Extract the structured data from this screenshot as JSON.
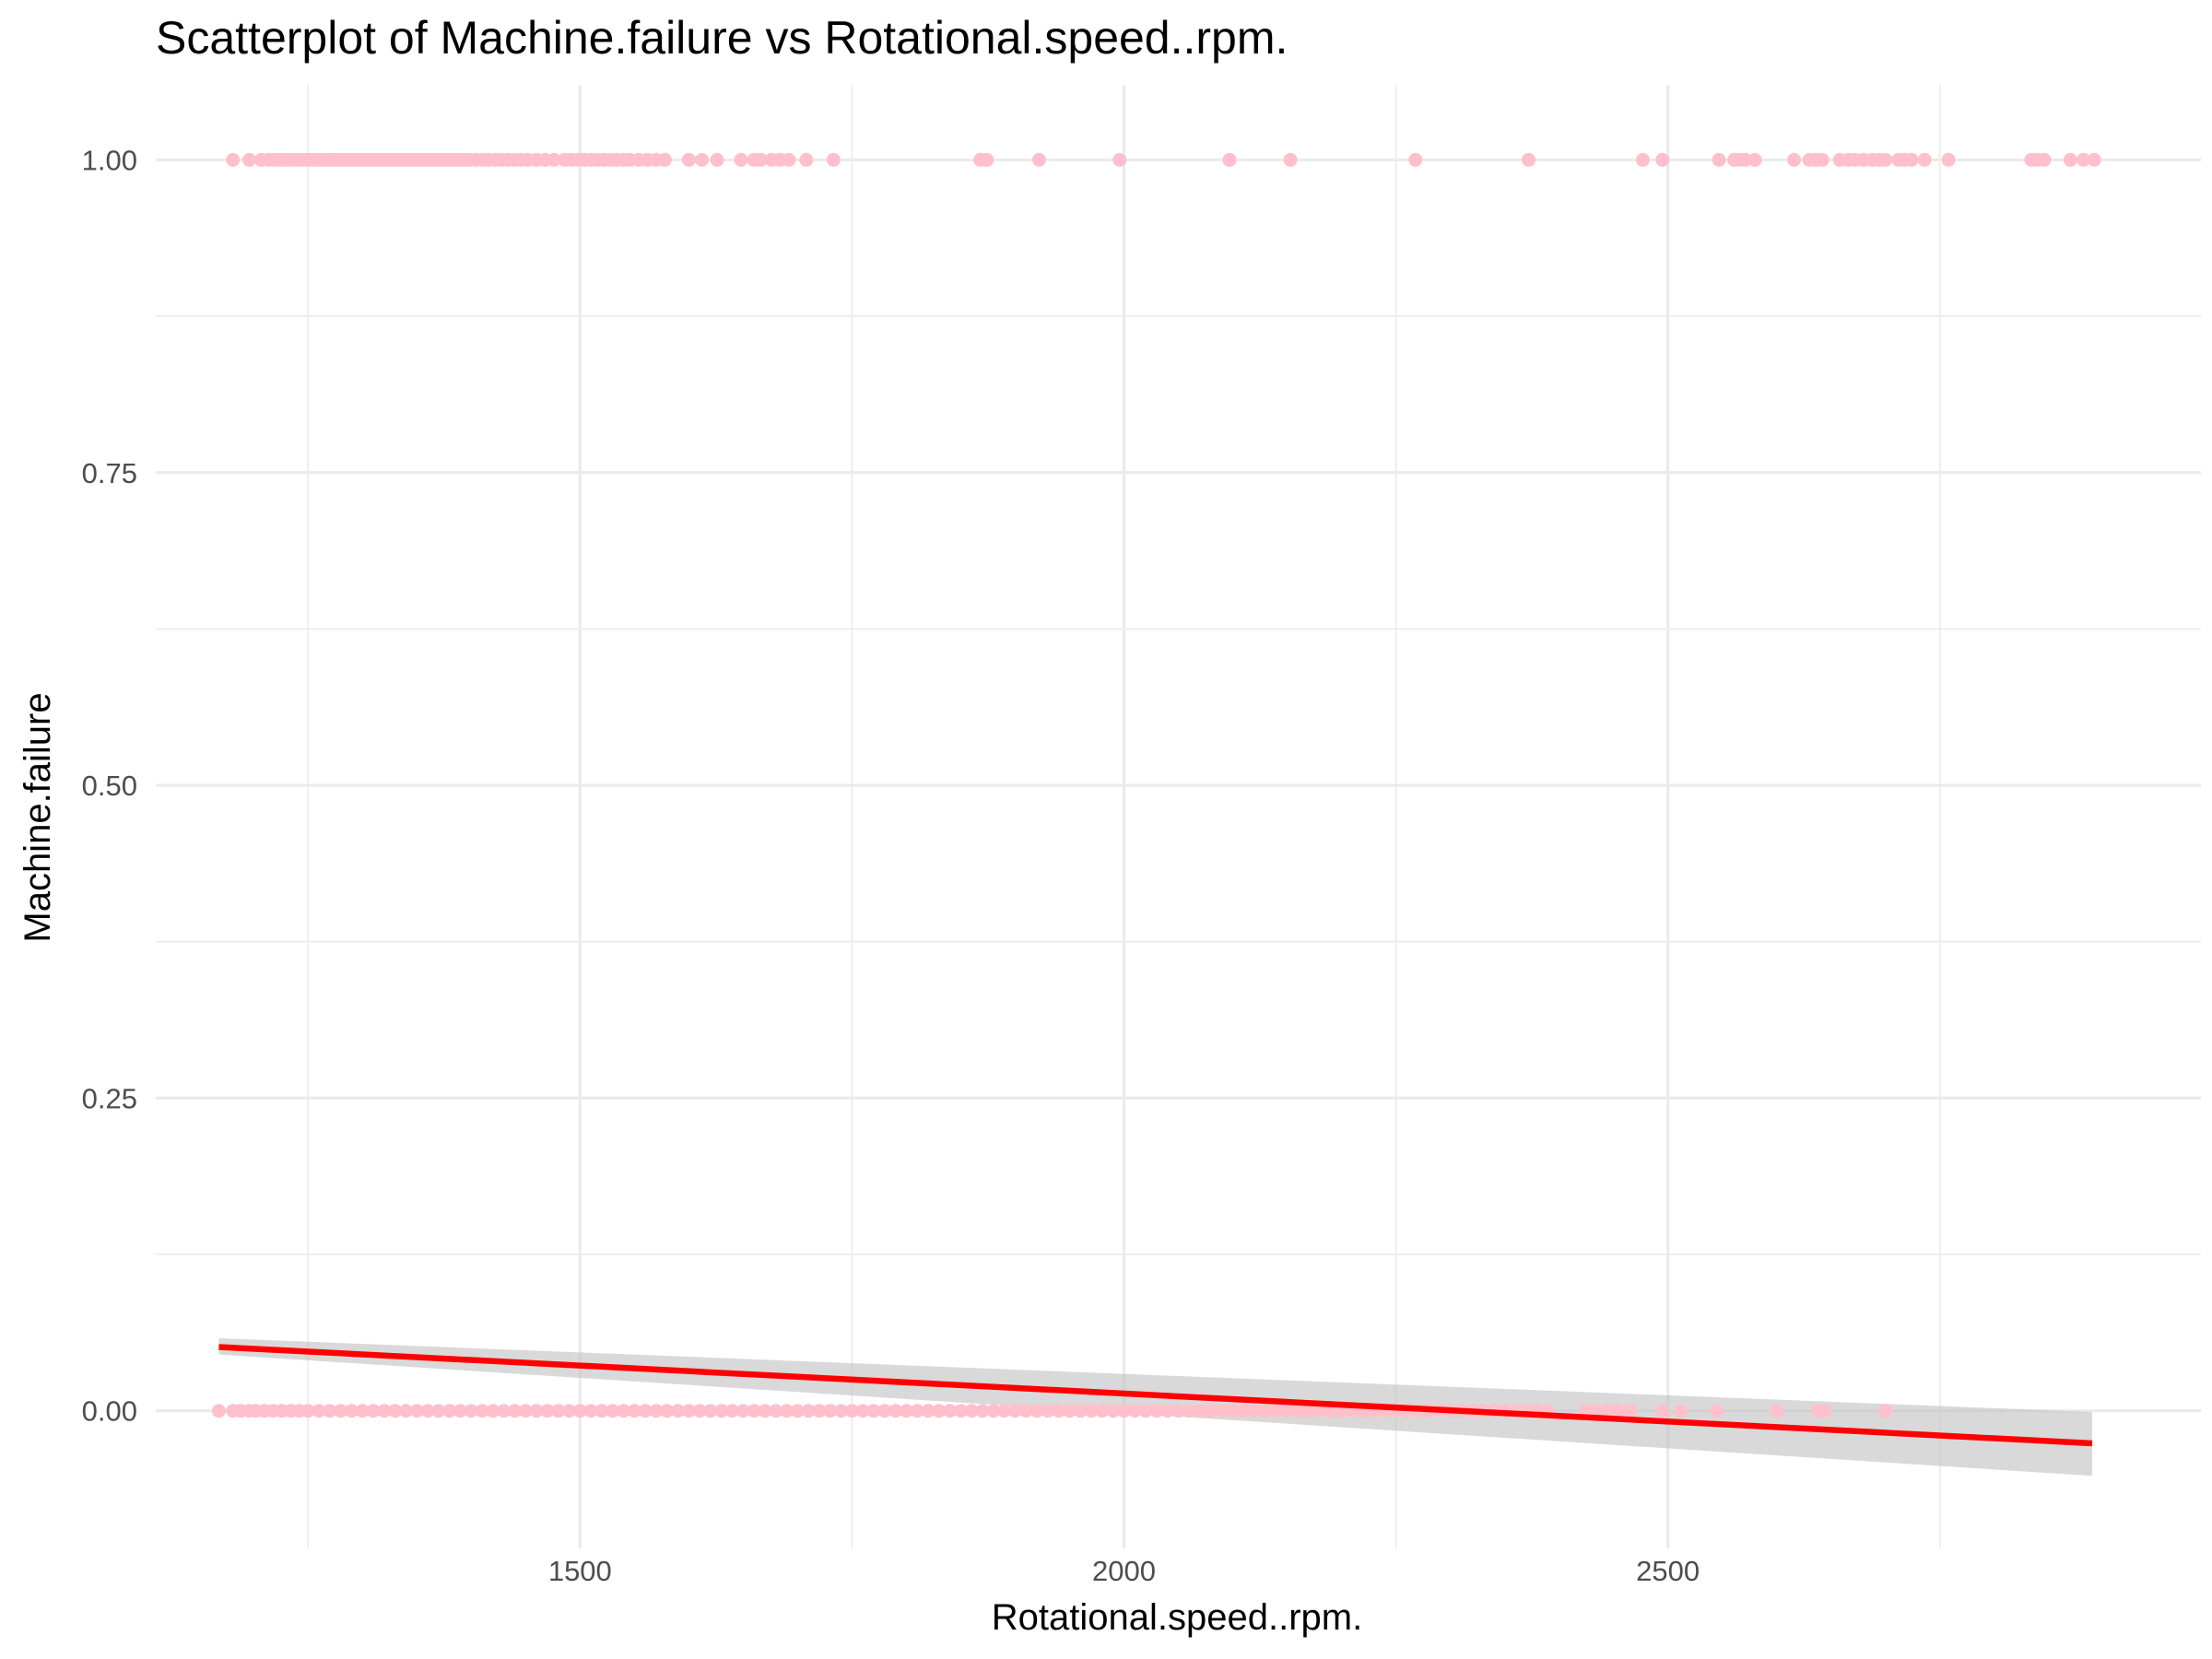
{
  "chart_data": {
    "type": "scatter",
    "title": "Scatterplot of Machine.failure vs Rotational.speed..rpm.",
    "xlabel": "Rotational.speed..rpm.",
    "ylabel": "Machine.failure",
    "xlim": [
      1110,
      2990
    ],
    "ylim": [
      -0.11,
      1.06
    ],
    "x_ticks": [
      1500,
      2000,
      2500
    ],
    "x_tick_labels": [
      "1500",
      "2000",
      "2500"
    ],
    "y_ticks": [
      0,
      0.25,
      0.5,
      0.75,
      1
    ],
    "y_tick_labels": [
      "0.00",
      "0.25",
      "0.50",
      "0.75",
      "1.00"
    ],
    "grid": true,
    "colors": {
      "points": "#FFC0CB",
      "fit_line": "#FF0000",
      "confidence_band": "#BFBFBF",
      "grid": "#EBEBEB"
    },
    "series": [
      {
        "values_y": 1,
        "x": [
          1181,
          1196,
          1207,
          1214,
          1219,
          1224,
          1228,
          1232,
          1236,
          1242,
          1246,
          1250,
          1254,
          1258,
          1262,
          1266,
          1270,
          1274,
          1278,
          1282,
          1286,
          1290,
          1294,
          1298,
          1302,
          1306,
          1310,
          1314,
          1318,
          1322,
          1326,
          1330,
          1334,
          1338,
          1342,
          1346,
          1350,
          1354,
          1358,
          1362,
          1366,
          1370,
          1374,
          1378,
          1382,
          1386,
          1390,
          1394,
          1398,
          1404,
          1410,
          1416,
          1422,
          1428,
          1434,
          1440,
          1446,
          1452,
          1460,
          1468,
          1476,
          1486,
          1492,
          1498,
          1504,
          1510,
          1516,
          1522,
          1528,
          1534,
          1540,
          1546,
          1554,
          1562,
          1570,
          1578,
          1600,
          1612,
          1626,
          1648,
          1660,
          1666,
          1676,
          1684,
          1692,
          1708,
          1733,
          1868,
          1874,
          1922,
          1996,
          2097,
          2153,
          2268,
          2372,
          2477,
          2495,
          2547,
          2561,
          2566,
          2571,
          2580,
          2616,
          2630,
          2636,
          2642,
          2658,
          2666,
          2672,
          2680,
          2688,
          2694,
          2700,
          2712,
          2718,
          2724,
          2736,
          2758,
          2834,
          2840,
          2846,
          2870,
          2882,
          2892
        ]
      },
      {
        "values_y": 0,
        "x": [
          1168,
          1181,
          1188,
          1196,
          1202,
          1210,
          1218,
          1226,
          1234,
          1242,
          1250,
          1260,
          1270,
          1280,
          1290,
          1300,
          1310,
          1320,
          1330,
          1340,
          1350,
          1360,
          1370,
          1380,
          1390,
          1400,
          1410,
          1420,
          1430,
          1440,
          1450,
          1460,
          1470,
          1480,
          1490,
          1500,
          1510,
          1520,
          1530,
          1540,
          1550,
          1560,
          1570,
          1580,
          1590,
          1600,
          1610,
          1620,
          1630,
          1640,
          1650,
          1660,
          1670,
          1680,
          1690,
          1700,
          1710,
          1720,
          1730,
          1740,
          1750,
          1760,
          1770,
          1780,
          1790,
          1800,
          1810,
          1820,
          1830,
          1840,
          1850,
          1860,
          1870,
          1880,
          1890,
          1900,
          1910,
          1920,
          1930,
          1940,
          1950,
          1960,
          1970,
          1980,
          1990,
          2000,
          2010,
          2020,
          2030,
          2040,
          2050,
          2060,
          2070,
          2080,
          2090,
          2100,
          2110,
          2120,
          2130,
          2140,
          2150,
          2160,
          2170,
          2180,
          2190,
          2200,
          2210,
          2220,
          2230,
          2240,
          2250,
          2260,
          2270,
          2280,
          2290,
          2300,
          2310,
          2320,
          2330,
          2340,
          2350,
          2360,
          2370,
          2380,
          2390,
          2425,
          2435,
          2445,
          2455,
          2465,
          2495,
          2512,
          2545,
          2600,
          2638,
          2644,
          2700
        ]
      }
    ],
    "fit_line": {
      "x": [
        1168,
        2890
      ],
      "y": [
        0.051,
        -0.026
      ]
    },
    "confidence_band": {
      "x": [
        1168,
        2890
      ],
      "y_lower": [
        0.045,
        -0.052
      ],
      "y_upper": [
        0.058,
        -0.001
      ]
    }
  }
}
